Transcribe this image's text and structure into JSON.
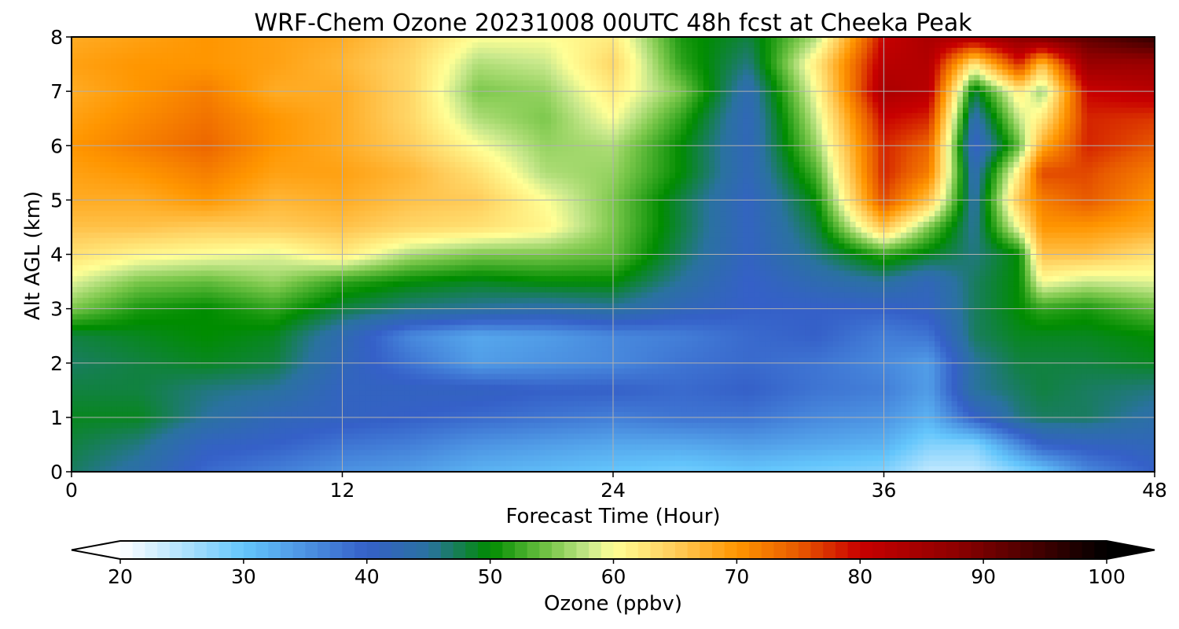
{
  "chart_data": {
    "type": "heatmap",
    "title": "WRF-Chem Ozone  20231008 00UTC 48h fcst at Cheeka Peak",
    "xlabel": "Forecast Time (Hour)",
    "ylabel": "Alt AGL (km)",
    "xlim": [
      0,
      48
    ],
    "ylim": [
      0,
      8
    ],
    "xticks": [
      "0",
      "12",
      "24",
      "36",
      "48"
    ],
    "yticks": [
      "0",
      "1",
      "2",
      "3",
      "4",
      "5",
      "6",
      "7",
      "8"
    ],
    "grid": true,
    "x": [
      0,
      3,
      6,
      9,
      12,
      15,
      18,
      21,
      24,
      27,
      30,
      33,
      36,
      38,
      40,
      42,
      43,
      45,
      48
    ],
    "y": [
      0,
      0.5,
      1,
      1.5,
      2,
      2.5,
      3,
      3.5,
      4,
      4.5,
      5,
      5.5,
      6,
      6.5,
      7,
      7.5,
      8
    ],
    "z": [
      [
        47,
        44,
        39,
        37,
        35,
        34,
        32,
        31,
        30,
        29,
        30,
        29,
        28,
        24,
        24,
        28,
        30,
        36,
        40
      ],
      [
        48,
        46,
        41,
        40,
        38,
        37,
        35,
        34,
        33,
        33,
        34,
        33,
        32,
        28,
        28,
        36,
        40,
        41,
        42
      ],
      [
        49,
        49,
        45,
        42,
        41,
        40,
        39,
        38,
        37,
        38,
        38,
        36,
        35,
        32,
        40,
        46,
        47,
        47,
        44
      ],
      [
        48,
        48,
        46,
        45,
        41,
        41,
        41,
        40,
        40,
        39,
        40,
        38,
        37,
        34,
        45,
        47,
        48,
        47,
        46
      ],
      [
        47,
        48,
        49,
        48,
        42,
        38,
        34,
        35,
        36,
        38,
        39,
        38,
        36,
        34,
        45,
        48,
        48,
        48,
        49
      ],
      [
        48,
        49,
        50,
        49,
        43,
        36,
        33,
        34,
        36,
        37,
        39,
        40,
        37,
        38,
        47,
        49,
        49,
        49,
        50
      ],
      [
        55,
        51,
        50,
        52,
        48,
        46,
        45,
        44,
        45,
        42,
        40,
        40,
        40,
        41,
        47,
        50,
        52,
        51,
        54
      ],
      [
        59,
        55,
        54,
        56,
        52,
        50,
        49,
        50,
        50,
        45,
        40,
        43,
        45,
        42,
        47,
        50,
        60,
        58,
        59
      ],
      [
        63,
        61,
        60,
        59,
        62,
        57,
        55,
        55,
        54,
        47,
        41,
        46,
        52,
        49,
        46,
        50,
        66,
        66,
        63
      ],
      [
        66,
        66,
        65,
        65,
        66,
        64,
        63,
        61,
        55,
        48,
        41,
        48,
        66,
        55,
        45,
        60,
        70,
        70,
        68
      ],
      [
        68,
        68,
        70,
        67,
        68,
        66,
        65,
        60,
        55,
        48,
        41,
        50,
        76,
        66,
        44,
        66,
        72,
        75,
        70
      ],
      [
        69,
        70,
        72,
        69,
        69,
        67,
        63,
        57,
        56,
        50,
        42,
        53,
        78,
        72,
        43,
        62,
        76,
        76,
        72
      ],
      [
        70,
        72,
        74,
        70,
        68,
        65,
        60,
        56,
        57,
        50,
        42,
        56,
        78,
        74,
        40,
        54,
        68,
        78,
        75
      ],
      [
        69,
        71,
        73,
        70,
        68,
        64,
        57,
        55,
        60,
        52,
        42,
        58,
        80,
        78,
        43,
        58,
        62,
        78,
        77
      ],
      [
        68,
        70,
        72,
        68,
        68,
        64,
        55,
        56,
        62,
        55,
        43,
        60,
        84,
        82,
        48,
        62,
        56,
        80,
        82
      ],
      [
        69,
        70,
        70,
        69,
        67,
        64,
        57,
        58,
        64,
        52,
        46,
        62,
        82,
        83,
        62,
        78,
        66,
        86,
        86
      ],
      [
        68,
        69,
        70,
        69,
        68,
        65,
        60,
        60,
        62,
        51,
        48,
        57,
        80,
        84,
        84,
        88,
        90,
        92,
        96
      ]
    ],
    "colorbar": {
      "label": "Ozone  (ppbv)",
      "min": 20,
      "max": 100,
      "ticks": [
        "20",
        "30",
        "40",
        "50",
        "60",
        "70",
        "80",
        "90",
        "100"
      ],
      "extend": "both",
      "anchors": [
        [
          20,
          "#ffffff"
        ],
        [
          30,
          "#64c6fc"
        ],
        [
          40,
          "#3560c8"
        ],
        [
          45,
          "#2a72a0"
        ],
        [
          50,
          "#008c00"
        ],
        [
          55,
          "#7cc84c"
        ],
        [
          58,
          "#c8e88c"
        ],
        [
          60,
          "#ffff96"
        ],
        [
          65,
          "#ffcc5a"
        ],
        [
          70,
          "#ff9600"
        ],
        [
          75,
          "#e85a00"
        ],
        [
          80,
          "#c80000"
        ],
        [
          88,
          "#8c0000"
        ],
        [
          95,
          "#3c0000"
        ],
        [
          100,
          "#000000"
        ]
      ]
    }
  }
}
